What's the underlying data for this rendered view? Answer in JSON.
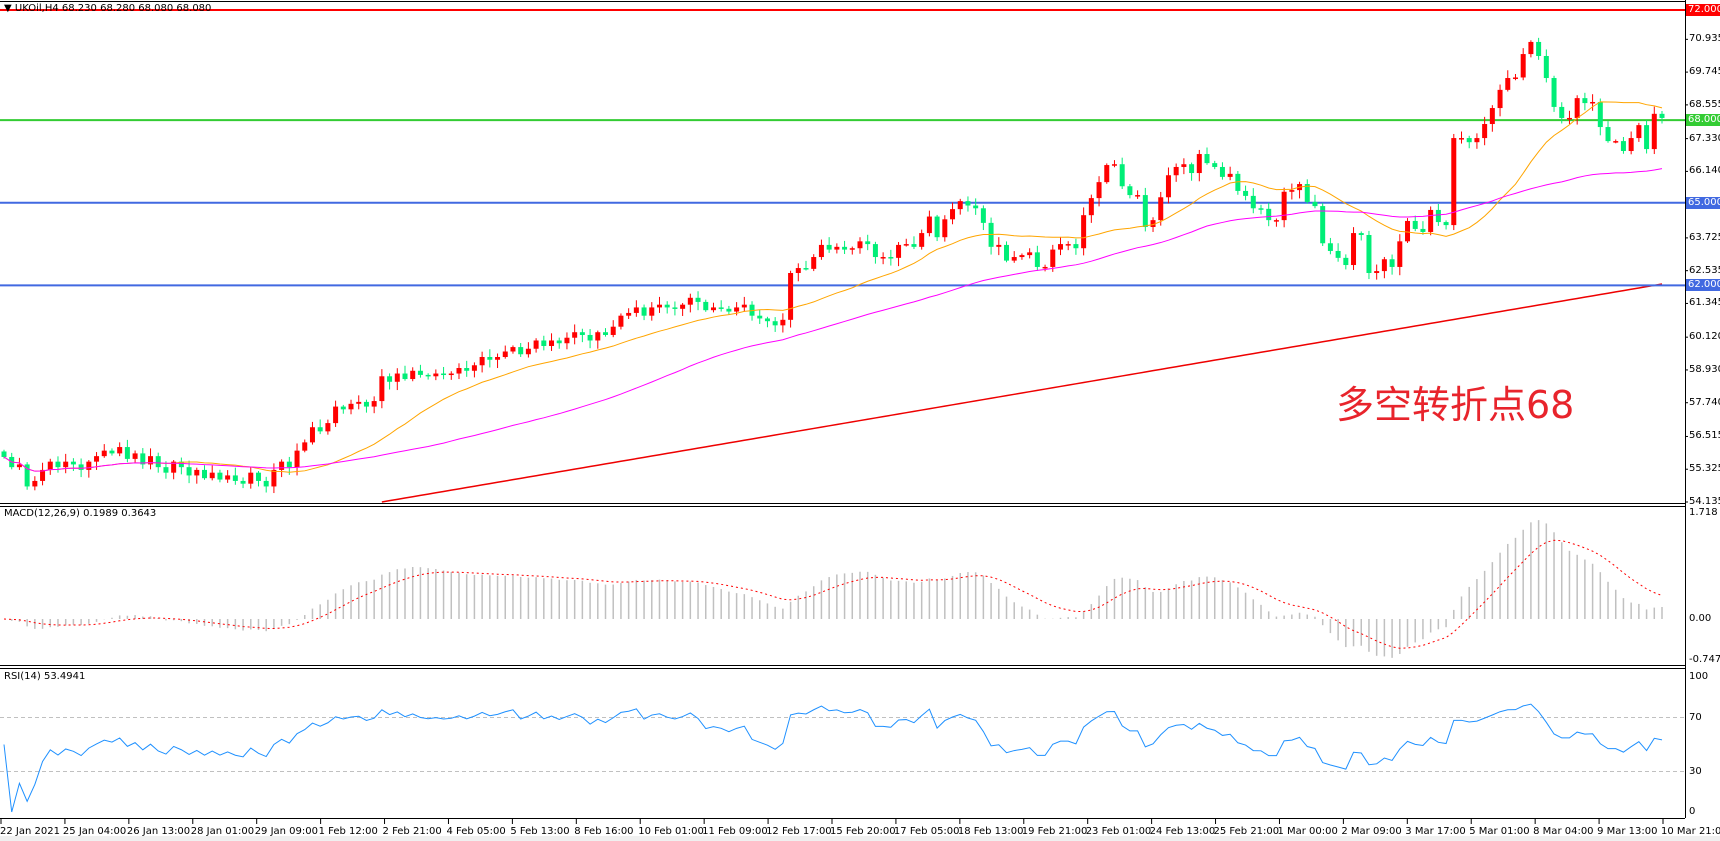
{
  "header": {
    "symbol": "UKOil,H4",
    "ohlc": "68.230 68.280 68.080 68.080"
  },
  "annotation": "多空转折点68",
  "colors": {
    "bull": "#ff0000",
    "bear": "#00ee77",
    "ma_fast": "#ffa500",
    "ma_mid": "#ff00ff",
    "ma_slow": "#ee0000",
    "macd_hist": "#c0c0c0",
    "macd_signal": "#ff0000",
    "rsi": "#1e90ff"
  },
  "chart_data": [
    {
      "type": "candlestick",
      "title": "UKOil,H4",
      "ylim": [
        54.135,
        72.0
      ],
      "price_ticks": [
        "70.935",
        "69.745",
        "68.555",
        "67.330",
        "66.140",
        "63.725",
        "62.535",
        "61.345",
        "60.120",
        "58.930",
        "57.740",
        "56.515",
        "55.325",
        "54.135"
      ],
      "horizontal_lines": [
        {
          "value": "72.000",
          "color": "#ff0000"
        },
        {
          "value": "68.000",
          "color": "#33cc33"
        },
        {
          "value": "65.000",
          "color": "#4169e1"
        },
        {
          "value": "62.000",
          "color": "#4169e1"
        }
      ],
      "last_bar": {
        "open": 68.23,
        "high": 68.28,
        "low": 68.08,
        "close": 68.08
      },
      "closes": [
        55.77,
        55.4,
        55.5,
        54.7,
        54.9,
        55.3,
        55.6,
        55.4,
        55.6,
        55.5,
        55.3,
        55.6,
        55.8,
        56.0,
        55.9,
        56.13,
        55.7,
        55.9,
        55.5,
        55.8,
        55.4,
        55.2,
        55.6,
        55.4,
        55.1,
        55.3,
        55.0,
        55.2,
        54.95,
        55.1,
        54.9,
        54.8,
        55.2,
        54.9,
        54.7,
        55.3,
        55.6,
        55.4,
        56.0,
        56.3,
        56.85,
        56.7,
        57.0,
        57.6,
        57.5,
        57.7,
        57.77,
        57.6,
        57.8,
        58.7,
        58.5,
        58.8,
        58.6,
        58.9,
        58.75,
        58.7,
        58.8,
        58.75,
        58.8,
        59.0,
        58.9,
        59.1,
        59.4,
        59.3,
        59.4,
        59.6,
        59.76,
        59.5,
        59.7,
        60.0,
        59.8,
        60.0,
        59.9,
        60.1,
        60.3,
        60.2,
        60.0,
        60.3,
        60.2,
        60.5,
        60.9,
        61.0,
        61.2,
        60.9,
        61.2,
        61.3,
        61.2,
        61.15,
        61.3,
        61.55,
        61.4,
        61.1,
        61.2,
        61.15,
        61.05,
        61.2,
        61.3,
        60.9,
        60.8,
        60.7,
        60.55,
        60.75,
        62.45,
        62.63,
        62.6,
        63.03,
        63.47,
        63.3,
        63.4,
        63.3,
        63.35,
        63.6,
        63.5,
        63.03,
        63.03,
        63.0,
        63.47,
        63.5,
        63.4,
        63.9,
        64.5,
        63.75,
        64.4,
        64.77,
        65.06,
        64.9,
        64.8,
        64.27,
        63.4,
        63.47,
        62.9,
        63.03,
        63.1,
        63.2,
        62.67,
        62.67,
        63.3,
        63.5,
        63.5,
        63.35,
        64.55,
        65.17,
        65.75,
        66.37,
        66.4,
        65.6,
        65.28,
        65.28,
        64.12,
        64.37,
        65.2,
        66.0,
        66.3,
        66.4,
        66.08,
        66.77,
        66.44,
        66.3,
        65.94,
        66.05,
        65.43,
        65.25,
        64.8,
        64.78,
        64.37,
        64.37,
        65.4,
        65.46,
        65.68,
        65.03,
        64.88,
        63.53,
        63.25,
        63.0,
        62.74,
        63.9,
        63.83,
        62.45,
        62.52,
        62.95,
        62.67,
        63.6,
        64.34,
        64.05,
        63.94,
        64.74,
        64.3,
        64.19,
        67.35,
        67.35,
        67.2,
        67.35,
        67.86,
        68.44,
        69.1,
        69.53,
        69.55,
        70.4,
        70.84,
        70.33,
        69.53,
        68.48,
        68.08,
        68.08,
        68.8,
        68.62,
        68.66,
        67.75,
        67.24,
        67.24,
        66.88,
        67.35,
        67.82,
        66.95,
        68.23,
        68.08
      ],
      "moving_averages": [
        {
          "period": 20,
          "color": "#ffa500"
        },
        {
          "period": 55,
          "color": "#ff00ff"
        }
      ],
      "slow_ma": {
        "start": 51.8,
        "end": 62.05,
        "color": "#ee0000"
      },
      "x_ticks": [
        "22 Jan 2021",
        "25 Jan 04:00",
        "26 Jan 13:00",
        "28 Jan 01:00",
        "29 Jan 09:00",
        "1 Feb 12:00",
        "2 Feb 21:00",
        "4 Feb 05:00",
        "5 Feb 13:00",
        "8 Feb 16:00",
        "10 Feb 01:00",
        "11 Feb 09:00",
        "12 Feb 17:00",
        "15 Feb 20:00",
        "17 Feb 05:00",
        "18 Feb 13:00",
        "19 Feb 21:00",
        "23 Feb 01:00",
        "24 Feb 13:00",
        "25 Feb 21:00",
        "1 Mar 00:00",
        "2 Mar 09:00",
        "3 Mar 17:00",
        "5 Mar 01:00",
        "8 Mar 04:00",
        "9 Mar 13:00",
        "10 Mar 21:00"
      ]
    },
    {
      "type": "bar",
      "title": "MACD(12,26,9) 0.1989 0.3643",
      "params": [
        12,
        26,
        9
      ],
      "ylim": [
        -0.7475,
        1.718
      ],
      "y_ticks": [
        "1.718",
        "0.00",
        "-0.7475"
      ]
    },
    {
      "type": "line",
      "title": "RSI(14) 53.4941",
      "period": 14,
      "ylim": [
        0,
        100
      ],
      "y_ticks": [
        "100",
        "70",
        "30",
        "0"
      ],
      "levels": [
        70,
        30
      ]
    }
  ]
}
